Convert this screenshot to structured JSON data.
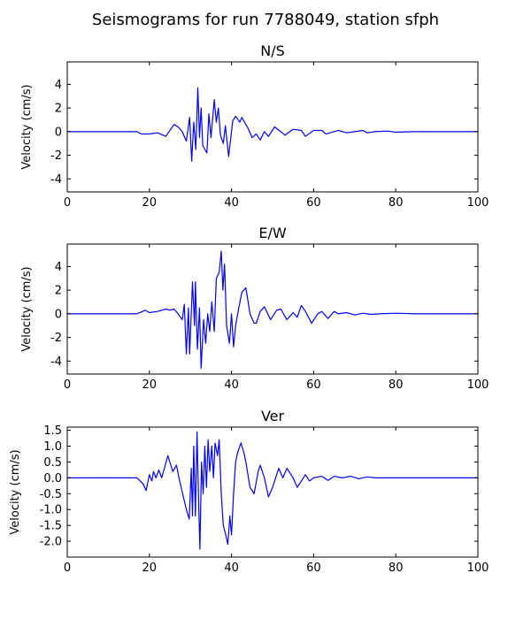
{
  "title": "Seismograms for run 7788049, station sfph",
  "chart_data": [
    {
      "type": "line",
      "title": "N/S",
      "ylabel": "Velocity (cm/s)",
      "x": [
        0,
        17,
        18,
        20,
        22,
        24,
        26,
        27,
        28,
        29,
        29.8,
        30.3,
        30.8,
        31.3,
        31.8,
        32.2,
        32.6,
        33,
        34,
        34.5,
        35,
        35.8,
        36.3,
        36.8,
        37.3,
        38,
        38.5,
        39.3,
        39.8,
        40.3,
        41,
        42,
        42.5,
        44,
        45,
        46,
        47,
        48,
        49,
        50.5,
        52,
        53,
        55,
        57,
        58,
        60,
        62,
        63,
        65,
        66,
        68,
        70,
        72,
        73,
        75,
        78,
        80,
        84,
        100
      ],
      "series": [
        {
          "color": "#0000ff",
          "values": [
            0,
            0,
            -0.2,
            -0.2,
            -0.1,
            -0.4,
            0.6,
            0.4,
            0,
            -0.8,
            1.2,
            -2.5,
            0.8,
            -1.5,
            3.7,
            -0.5,
            2,
            -1.2,
            -1.8,
            1.5,
            -0.5,
            2.7,
            0.8,
            2,
            -0.3,
            -1,
            0.5,
            -2.1,
            -0.6,
            0.9,
            1.3,
            0.8,
            1.2,
            0.3,
            -0.5,
            -0.2,
            -0.7,
            0,
            -0.4,
            0.4,
            0,
            -0.3,
            0.2,
            0.1,
            -0.4,
            0.1,
            0.1,
            -0.2,
            0,
            0.1,
            -0.1,
            0,
            0.1,
            -0.1,
            0,
            0.05,
            -0.05,
            0,
            0
          ]
        }
      ],
      "xlim": [
        0,
        100
      ],
      "ylim": [
        -5.1,
        5.9
      ],
      "xticks": [
        0,
        20,
        40,
        60,
        80,
        100
      ],
      "yticks": [
        -4,
        -2,
        0,
        2,
        4
      ]
    },
    {
      "type": "line",
      "title": "E/W",
      "ylabel": "Velocity (cm/s)",
      "x": [
        0,
        17,
        19,
        20,
        22,
        24,
        25,
        26,
        27,
        28,
        28.5,
        29,
        29.5,
        29.8,
        30.5,
        31,
        31.2,
        31.7,
        32.2,
        32.6,
        33.2,
        33.7,
        34.2,
        34.7,
        35.2,
        35.8,
        36.3,
        37,
        37.5,
        37.9,
        38.3,
        38.8,
        39.5,
        40,
        40.5,
        41,
        41.5,
        42.5,
        43.5,
        44.5,
        45.5,
        46,
        47,
        48,
        49.5,
        51,
        52,
        53.5,
        55,
        56,
        57,
        58,
        59.5,
        61,
        62,
        63.5,
        65,
        66,
        68,
        70,
        72,
        74,
        76,
        80,
        85,
        100
      ],
      "series": [
        {
          "color": "#0000ff",
          "values": [
            0,
            0,
            0.3,
            0.1,
            0.2,
            0.4,
            0.3,
            0.4,
            0,
            -0.5,
            0.8,
            -3.4,
            0.5,
            -3.4,
            2.7,
            -1,
            2.7,
            -3,
            0.5,
            -4.6,
            -0.5,
            -2.5,
            0,
            -1.5,
            1,
            -1.5,
            3,
            3.5,
            5.3,
            2,
            4.2,
            -1,
            -2.5,
            0,
            -2.8,
            -1,
            0,
            1.8,
            2.2,
            0,
            -0.8,
            -0.8,
            0.2,
            0.6,
            -0.5,
            0.3,
            0.4,
            -0.5,
            0.1,
            -0.3,
            0.7,
            0.2,
            -0.8,
            0,
            0.2,
            -0.4,
            0.2,
            0,
            0.1,
            -0.1,
            0.05,
            -0.05,
            0,
            0.05,
            0,
            0
          ]
        }
      ],
      "xlim": [
        0,
        100
      ],
      "ylim": [
        -5.1,
        5.9
      ],
      "xticks": [
        0,
        20,
        40,
        60,
        80,
        100
      ],
      "yticks": [
        -4,
        -2,
        0,
        2,
        4
      ]
    },
    {
      "type": "line",
      "title": "Ver",
      "ylabel": "Velocity (cm/s)",
      "x": [
        0,
        17,
        18.5,
        19.2,
        20,
        20.6,
        21,
        21.6,
        22.3,
        23,
        24.5,
        25.7,
        26.6,
        27.2,
        28.1,
        29,
        29.7,
        30.2,
        30.5,
        30.8,
        31.2,
        31.6,
        32,
        32.3,
        32.7,
        33.1,
        33.5,
        33.9,
        34.3,
        34.7,
        35.2,
        35.6,
        36,
        36.6,
        37,
        37.5,
        38,
        38.6,
        39.1,
        39.6,
        40,
        40.5,
        41,
        41.5,
        42.3,
        43,
        43.5,
        44.5,
        45.5,
        46.5,
        47,
        48,
        49,
        50,
        51.5,
        52.5,
        53.5,
        55,
        56,
        57,
        58,
        59,
        60,
        62,
        63.5,
        65,
        67,
        69,
        71,
        73,
        75,
        100
      ],
      "series": [
        {
          "color": "#0000ff",
          "values": [
            0,
            0,
            -0.2,
            -0.4,
            0.1,
            -0.1,
            0.2,
            0,
            0.25,
            0,
            0.7,
            0.2,
            0.4,
            0,
            -0.5,
            -1.0,
            -1.3,
            0.3,
            -1.2,
            1.0,
            -1.2,
            1.45,
            -0.8,
            -2.25,
            0.5,
            -0.5,
            1.0,
            -0.3,
            1.2,
            0.2,
            1.0,
            0,
            1.1,
            0.7,
            1.2,
            -0.5,
            -1.5,
            -1.8,
            -2.1,
            -1.2,
            -1.8,
            -0.5,
            0.5,
            0.8,
            1.1,
            0.8,
            0.5,
            -0.3,
            -0.5,
            0.2,
            0.4,
            0,
            -0.6,
            -0.3,
            0.3,
            0,
            0.3,
            0,
            -0.3,
            -0.1,
            0.1,
            -0.1,
            0,
            0.05,
            -0.08,
            0.05,
            0,
            0.05,
            -0.03,
            0.03,
            0,
            0
          ]
        }
      ],
      "xlim": [
        0,
        100
      ],
      "ylim": [
        -2.5,
        1.6
      ],
      "xticks": [
        0,
        20,
        40,
        60,
        80,
        100
      ],
      "yticks": [
        {
          "value": -2.0,
          "label": "-2.0"
        },
        -1.5,
        {
          "value": -1.0,
          "label": "-1.0"
        },
        -0.5,
        {
          "value": 0,
          "label": "0.0"
        },
        0.5,
        {
          "value": 1.0,
          "label": "1.0"
        },
        1.5
      ]
    }
  ]
}
